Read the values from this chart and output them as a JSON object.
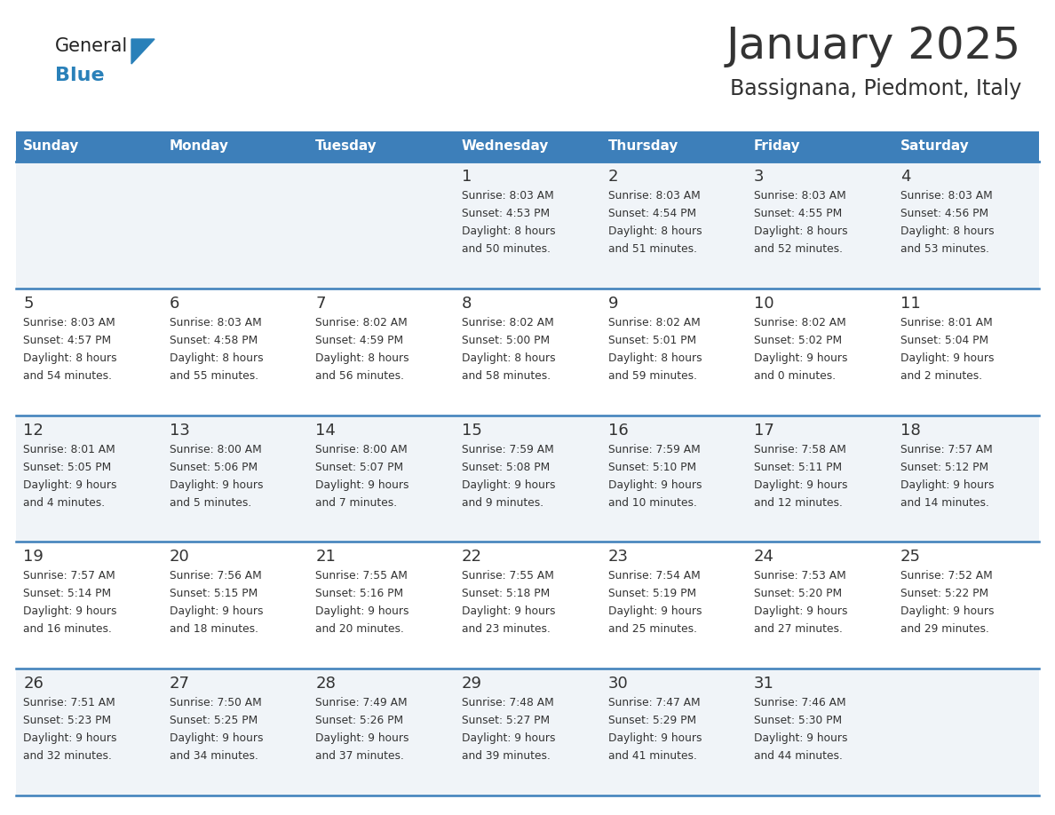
{
  "title": "January 2025",
  "subtitle": "Bassignana, Piedmont, Italy",
  "days_of_week": [
    "Sunday",
    "Monday",
    "Tuesday",
    "Wednesday",
    "Thursday",
    "Friday",
    "Saturday"
  ],
  "header_bg": "#3d7fba",
  "header_text": "#ffffff",
  "row_bg_light": "#f0f4f8",
  "row_bg_white": "#ffffff",
  "divider_color": "#3d7fba",
  "text_color": "#333333",
  "title_color": "#333333",
  "logo_general_color": "#222222",
  "logo_blue_color": "#2980b9",
  "logo_triangle_color": "#2980b9",
  "calendar_data": [
    [
      null,
      null,
      null,
      {
        "day": 1,
        "sunrise": "8:03 AM",
        "sunset": "4:53 PM",
        "daylight": "8 hours and 50 minutes."
      },
      {
        "day": 2,
        "sunrise": "8:03 AM",
        "sunset": "4:54 PM",
        "daylight": "8 hours and 51 minutes."
      },
      {
        "day": 3,
        "sunrise": "8:03 AM",
        "sunset": "4:55 PM",
        "daylight": "8 hours and 52 minutes."
      },
      {
        "day": 4,
        "sunrise": "8:03 AM",
        "sunset": "4:56 PM",
        "daylight": "8 hours and 53 minutes."
      }
    ],
    [
      {
        "day": 5,
        "sunrise": "8:03 AM",
        "sunset": "4:57 PM",
        "daylight": "8 hours and 54 minutes."
      },
      {
        "day": 6,
        "sunrise": "8:03 AM",
        "sunset": "4:58 PM",
        "daylight": "8 hours and 55 minutes."
      },
      {
        "day": 7,
        "sunrise": "8:02 AM",
        "sunset": "4:59 PM",
        "daylight": "8 hours and 56 minutes."
      },
      {
        "day": 8,
        "sunrise": "8:02 AM",
        "sunset": "5:00 PM",
        "daylight": "8 hours and 58 minutes."
      },
      {
        "day": 9,
        "sunrise": "8:02 AM",
        "sunset": "5:01 PM",
        "daylight": "8 hours and 59 minutes."
      },
      {
        "day": 10,
        "sunrise": "8:02 AM",
        "sunset": "5:02 PM",
        "daylight": "9 hours and 0 minutes."
      },
      {
        "day": 11,
        "sunrise": "8:01 AM",
        "sunset": "5:04 PM",
        "daylight": "9 hours and 2 minutes."
      }
    ],
    [
      {
        "day": 12,
        "sunrise": "8:01 AM",
        "sunset": "5:05 PM",
        "daylight": "9 hours and 4 minutes."
      },
      {
        "day": 13,
        "sunrise": "8:00 AM",
        "sunset": "5:06 PM",
        "daylight": "9 hours and 5 minutes."
      },
      {
        "day": 14,
        "sunrise": "8:00 AM",
        "sunset": "5:07 PM",
        "daylight": "9 hours and 7 minutes."
      },
      {
        "day": 15,
        "sunrise": "7:59 AM",
        "sunset": "5:08 PM",
        "daylight": "9 hours and 9 minutes."
      },
      {
        "day": 16,
        "sunrise": "7:59 AM",
        "sunset": "5:10 PM",
        "daylight": "9 hours and 10 minutes."
      },
      {
        "day": 17,
        "sunrise": "7:58 AM",
        "sunset": "5:11 PM",
        "daylight": "9 hours and 12 minutes."
      },
      {
        "day": 18,
        "sunrise": "7:57 AM",
        "sunset": "5:12 PM",
        "daylight": "9 hours and 14 minutes."
      }
    ],
    [
      {
        "day": 19,
        "sunrise": "7:57 AM",
        "sunset": "5:14 PM",
        "daylight": "9 hours and 16 minutes."
      },
      {
        "day": 20,
        "sunrise": "7:56 AM",
        "sunset": "5:15 PM",
        "daylight": "9 hours and 18 minutes."
      },
      {
        "day": 21,
        "sunrise": "7:55 AM",
        "sunset": "5:16 PM",
        "daylight": "9 hours and 20 minutes."
      },
      {
        "day": 22,
        "sunrise": "7:55 AM",
        "sunset": "5:18 PM",
        "daylight": "9 hours and 23 minutes."
      },
      {
        "day": 23,
        "sunrise": "7:54 AM",
        "sunset": "5:19 PM",
        "daylight": "9 hours and 25 minutes."
      },
      {
        "day": 24,
        "sunrise": "7:53 AM",
        "sunset": "5:20 PM",
        "daylight": "9 hours and 27 minutes."
      },
      {
        "day": 25,
        "sunrise": "7:52 AM",
        "sunset": "5:22 PM",
        "daylight": "9 hours and 29 minutes."
      }
    ],
    [
      {
        "day": 26,
        "sunrise": "7:51 AM",
        "sunset": "5:23 PM",
        "daylight": "9 hours and 32 minutes."
      },
      {
        "day": 27,
        "sunrise": "7:50 AM",
        "sunset": "5:25 PM",
        "daylight": "9 hours and 34 minutes."
      },
      {
        "day": 28,
        "sunrise": "7:49 AM",
        "sunset": "5:26 PM",
        "daylight": "9 hours and 37 minutes."
      },
      {
        "day": 29,
        "sunrise": "7:48 AM",
        "sunset": "5:27 PM",
        "daylight": "9 hours and 39 minutes."
      },
      {
        "day": 30,
        "sunrise": "7:47 AM",
        "sunset": "5:29 PM",
        "daylight": "9 hours and 41 minutes."
      },
      {
        "day": 31,
        "sunrise": "7:46 AM",
        "sunset": "5:30 PM",
        "daylight": "9 hours and 44 minutes."
      },
      null
    ]
  ]
}
